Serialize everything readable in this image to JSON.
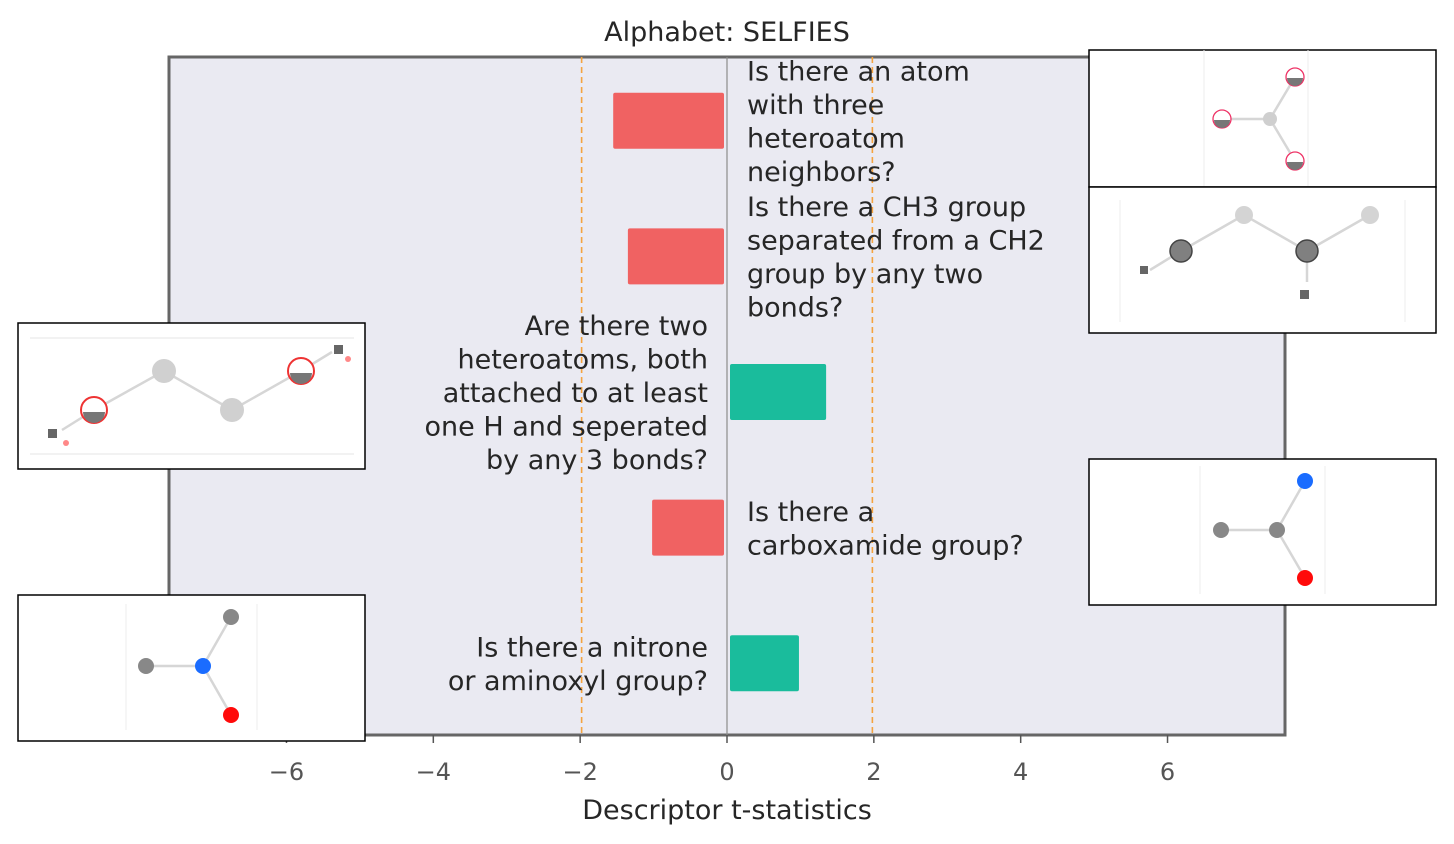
{
  "chart_data": {
    "type": "bar",
    "orientation": "horizontal",
    "title": "Alphabet: SELFIES",
    "xlabel": "Descriptor t-statistics",
    "ylabel": "",
    "xlim": [
      -7.6,
      7.6
    ],
    "xticks": [
      -6,
      -4,
      -2,
      0,
      2,
      4,
      6
    ],
    "xtick_labels": [
      "−6",
      "−4",
      "−2",
      "0",
      "2",
      "4",
      "6"
    ],
    "significance_lines": [
      -1.98,
      1.98
    ],
    "grid": false,
    "background": "#eaeaf2",
    "bars": [
      {
        "label": "Is there an atom with three heteroatom neighbors?",
        "lines": [
          "Is there an atom",
          "with three",
          "heteroatom",
          "neighbors?"
        ],
        "value": -1.55,
        "color": "#f06262",
        "label_side": "right",
        "image_side": "right"
      },
      {
        "label": "Is there a CH3 group separated from a CH2 group by any two bonds?",
        "lines": [
          "Is there a CH3 group",
          "separated from a CH2",
          "group by any two",
          "bonds?"
        ],
        "value": -1.35,
        "color": "#f06262",
        "label_side": "right",
        "image_side": "right"
      },
      {
        "label": "Are there two heteroatoms, both attached to at least one H and seperated by any 3 bonds?",
        "lines": [
          "Are there two",
          "heteroatoms, both",
          "attached to at least",
          "one H and seperated",
          "by any 3 bonds?"
        ],
        "value": 1.35,
        "color": "#1abc9c",
        "label_side": "left",
        "image_side": "left"
      },
      {
        "label": "Is there a carboxamide group?",
        "lines": [
          "Is there a",
          "carboxamide group?"
        ],
        "value": -1.02,
        "color": "#f06262",
        "label_side": "right",
        "image_side": "right"
      },
      {
        "label": "Is there a nitrone or aminoxyl group?",
        "lines": [
          "Is there a nitrone",
          "or aminoxyl group?"
        ],
        "value": 0.98,
        "color": "#1abc9c",
        "label_side": "left",
        "image_side": "left"
      }
    ]
  }
}
